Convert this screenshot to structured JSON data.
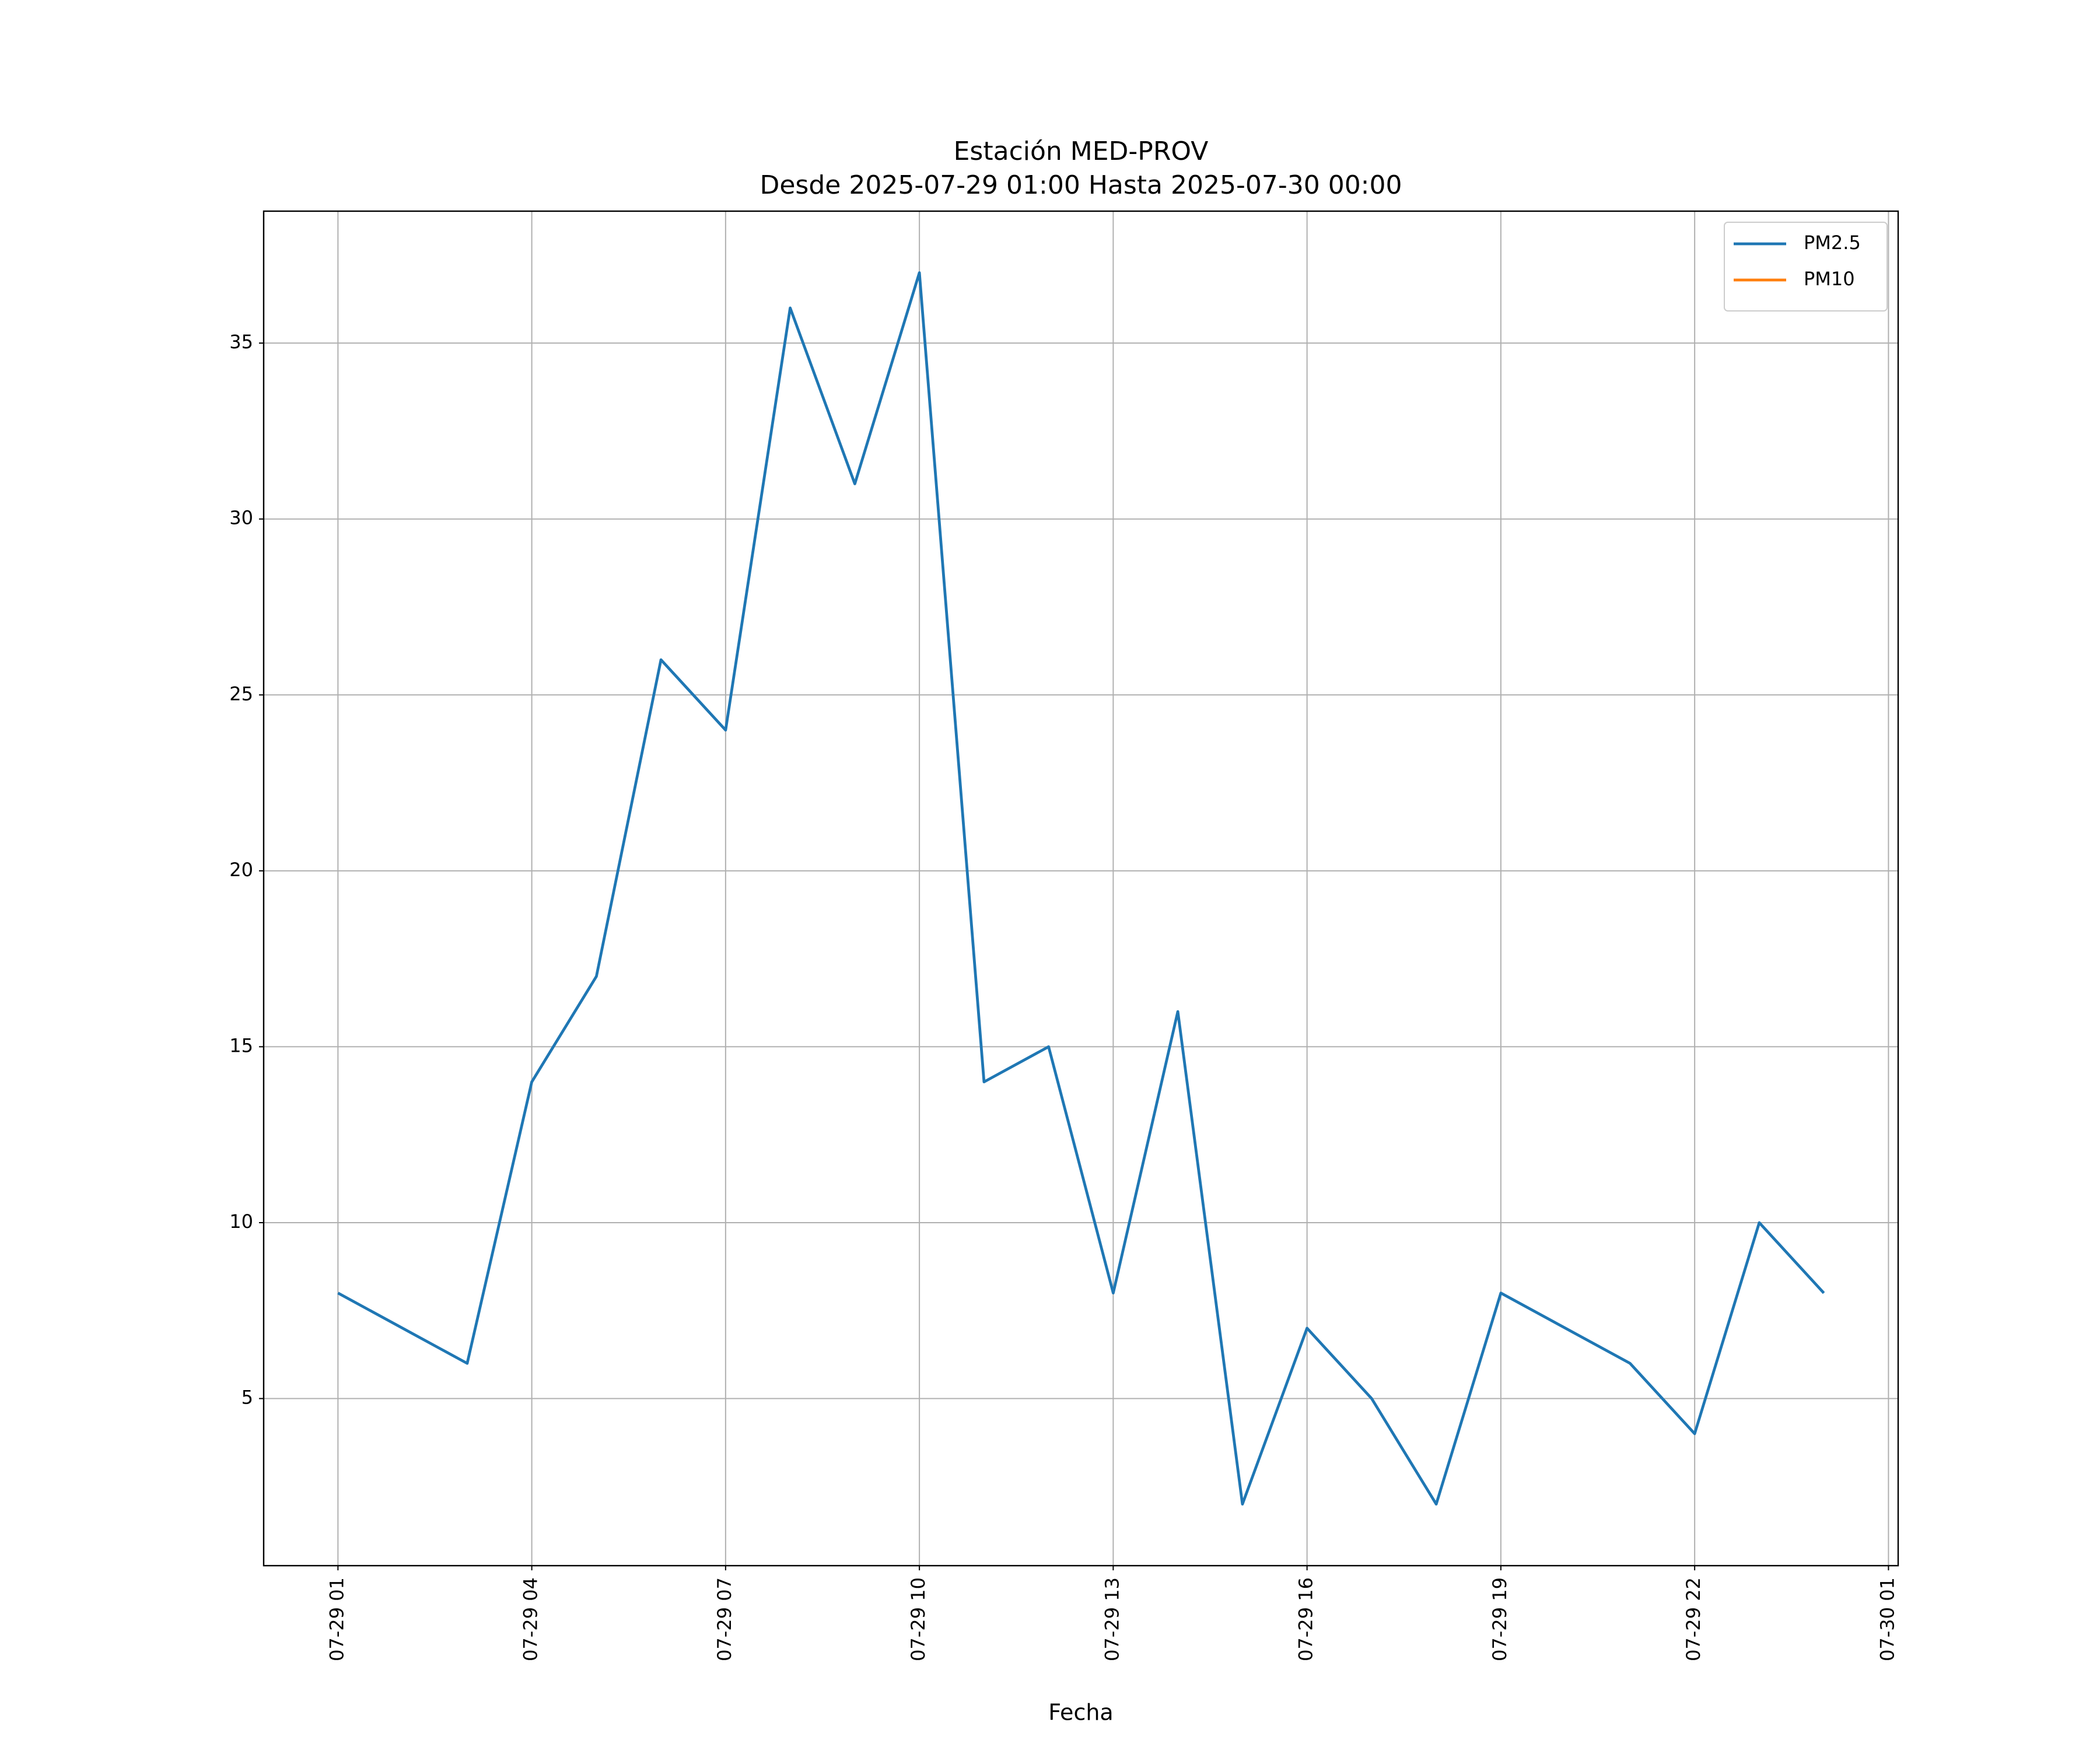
{
  "chart_data": {
    "type": "line",
    "title": "Estación MED-PROV",
    "subtitle": "Desde 2025-07-29 01:00 Hasta 2025-07-30 00:00",
    "xlabel": "Fecha",
    "x": [
      "2025-07-29 01:00",
      "2025-07-29 02:00",
      "2025-07-29 03:00",
      "2025-07-29 04:00",
      "2025-07-29 05:00",
      "2025-07-29 06:00",
      "2025-07-29 07:00",
      "2025-07-29 08:00",
      "2025-07-29 09:00",
      "2025-07-29 10:00",
      "2025-07-29 11:00",
      "2025-07-29 12:00",
      "2025-07-29 13:00",
      "2025-07-29 14:00",
      "2025-07-29 15:00",
      "2025-07-29 16:00",
      "2025-07-29 17:00",
      "2025-07-29 18:00",
      "2025-07-29 19:00",
      "2025-07-29 20:00",
      "2025-07-29 21:00",
      "2025-07-29 22:00",
      "2025-07-29 23:00",
      "2025-07-30 00:00"
    ],
    "series": [
      {
        "name": "PM2.5",
        "color": "#1f77b4",
        "values": [
          8,
          7,
          6,
          14,
          17,
          26,
          24,
          36,
          31,
          37,
          14,
          15,
          8,
          16,
          2,
          7,
          5,
          2,
          8,
          7,
          6,
          4,
          10,
          8
        ]
      },
      {
        "name": "PM10",
        "color": "#ff7f0e",
        "values": [
          null,
          null,
          null,
          null,
          null,
          null,
          null,
          null,
          null,
          null,
          null,
          null,
          null,
          null,
          null,
          null,
          null,
          null,
          null,
          null,
          null,
          null,
          null,
          null
        ]
      }
    ],
    "xlim": [
      "2025-07-28 23:51",
      "2025-07-30 01:09"
    ],
    "xticks": [
      {
        "value": "2025-07-29 01:00",
        "label": "07-29 01"
      },
      {
        "value": "2025-07-29 04:00",
        "label": "07-29 04"
      },
      {
        "value": "2025-07-29 07:00",
        "label": "07-29 07"
      },
      {
        "value": "2025-07-29 10:00",
        "label": "07-29 10"
      },
      {
        "value": "2025-07-29 13:00",
        "label": "07-29 13"
      },
      {
        "value": "2025-07-29 16:00",
        "label": "07-29 16"
      },
      {
        "value": "2025-07-29 19:00",
        "label": "07-29 19"
      },
      {
        "value": "2025-07-29 22:00",
        "label": "07-29 22"
      },
      {
        "value": "2025-07-30 01:00",
        "label": "07-30 01"
      }
    ],
    "ylim": [
      0.25,
      38.75
    ],
    "yticks": [
      5,
      10,
      15,
      20,
      25,
      30,
      35
    ],
    "grid": true,
    "legend": "upper right"
  }
}
